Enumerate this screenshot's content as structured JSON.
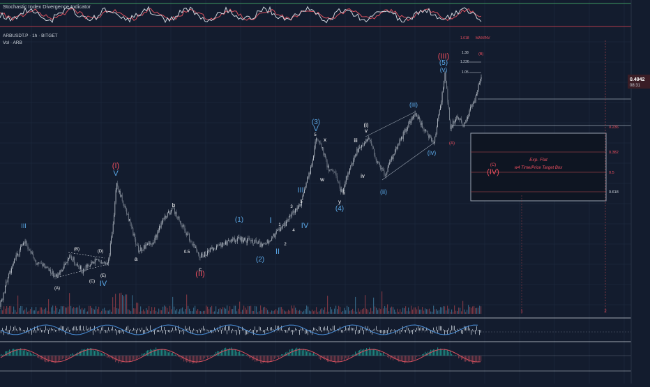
{
  "header": {
    "osc_title": "Stochastic Index Divergence Indicator",
    "symbol": "ARBUSDT.P · 1h · BITGET",
    "vol_label": "Vol · ARB"
  },
  "price_tag": {
    "value": "0.4942",
    "countdown": "08:31"
  },
  "fib_top": {
    "r1618": "1.618",
    "max": "MAX/INV",
    "r138": "1.38",
    "r1236": "1.236",
    "r105": "1.05",
    "b": "(B)"
  },
  "fib_box": {
    "r236": "0.236",
    "r382": "0.382",
    "r5": "0.5",
    "r618": "0.618",
    "title": "Exp. Flat",
    "subtitle": "w4 Time/Price Target Box"
  },
  "box_labels": {
    "c": "(C)",
    "iv": "(IV)"
  },
  "time_marks": [
    "1",
    "2"
  ],
  "chart_data": {
    "type": "candlestick",
    "title": "",
    "symbol": "ARBUSDT.P",
    "timeframe": "1h",
    "exchange": "BITGET",
    "last_price": 0.4942,
    "wave_labels": [
      {
        "text": "III",
        "color": "#5aa7e6"
      },
      {
        "text": "(B)",
        "color": "#ffffff"
      },
      {
        "text": "(D)",
        "color": "#ffffff"
      },
      {
        "text": "(A)",
        "color": "#ffffff"
      },
      {
        "text": "(C)",
        "color": "#ffffff"
      },
      {
        "text": "(E)",
        "color": "#ffffff"
      },
      {
        "text": "IV",
        "color": "#5aa7e6"
      },
      {
        "text": "(I)",
        "color": "#ef4f5f"
      },
      {
        "text": "V",
        "color": "#5aa7e6"
      },
      {
        "text": "a",
        "color": "#ffffff"
      },
      {
        "text": "b",
        "color": "#ffffff"
      },
      {
        "text": "0.5",
        "color": "#ffffff"
      },
      {
        "text": "c",
        "color": "#ffffff"
      },
      {
        "text": "(II)",
        "color": "#ef4f5f"
      },
      {
        "text": "(1)",
        "color": "#5aa7e6"
      },
      {
        "text": "(2)",
        "color": "#5aa7e6"
      },
      {
        "text": "I",
        "color": "#5aa7e6"
      },
      {
        "text": "II",
        "color": "#5aa7e6"
      },
      {
        "text": "1",
        "color": "#ffffff"
      },
      {
        "text": "2",
        "color": "#ffffff"
      },
      {
        "text": "3",
        "color": "#ffffff"
      },
      {
        "text": "4",
        "color": "#ffffff"
      },
      {
        "text": "5",
        "color": "#ffffff"
      },
      {
        "text": "III",
        "color": "#5aa7e6"
      },
      {
        "text": "IV",
        "color": "#5aa7e6"
      },
      {
        "text": "(3)",
        "color": "#5aa7e6"
      },
      {
        "text": "V",
        "color": "#5aa7e6"
      },
      {
        "text": "5",
        "color": "#ffffff"
      },
      {
        "text": "x",
        "color": "#ffffff"
      },
      {
        "text": "w",
        "color": "#ffffff"
      },
      {
        "text": "y",
        "color": "#ffffff"
      },
      {
        "text": "(4)",
        "color": "#5aa7e6"
      },
      {
        "text": "iii",
        "color": "#ffffff"
      },
      {
        "text": "(i)",
        "color": "#ffffff"
      },
      {
        "text": "v",
        "color": "#ffffff"
      },
      {
        "text": "iv",
        "color": "#ffffff"
      },
      {
        "text": "ii",
        "color": "#ffffff"
      },
      {
        "text": "(ii)",
        "color": "#5aa7e6"
      },
      {
        "text": "(iii)",
        "color": "#5aa7e6"
      },
      {
        "text": "(iv)",
        "color": "#5aa7e6"
      },
      {
        "text": "(v)",
        "color": "#5aa7e6"
      },
      {
        "text": "(5)",
        "color": "#5aa7e6"
      },
      {
        "text": "(III)",
        "color": "#ef4f5f"
      },
      {
        "text": "(A)",
        "color": "#ef4f5f"
      }
    ],
    "colors": {
      "background": "#131c2e",
      "candle": "#9aa4b2",
      "volume_up": "#3a6f8f",
      "volume_down": "#8b3b45",
      "wave_blue": "#5aa7e6",
      "wave_red": "#ef4f5f"
    },
    "grid": true
  }
}
